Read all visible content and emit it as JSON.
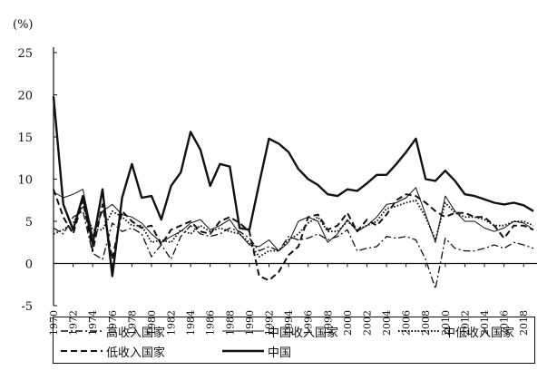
{
  "chart_data": {
    "type": "line",
    "ylabel": "(%)",
    "ylim": [
      -5,
      25
    ],
    "yticks": [
      "25",
      "20",
      "15",
      "10",
      "5",
      "0",
      "-5"
    ],
    "xlim": [
      1970,
      2019
    ],
    "xticks": [
      "1970",
      "1972",
      "1974",
      "1976",
      "1978",
      "1980",
      "1982",
      "1984",
      "1986",
      "1988",
      "1990",
      "1992",
      "1994",
      "1996",
      "1998",
      "2000",
      "2002",
      "2004",
      "2006",
      "2008",
      "2010",
      "2012",
      "2014",
      "2016",
      "2018"
    ],
    "x": [
      1970,
      1971,
      1972,
      1973,
      1974,
      1975,
      1976,
      1977,
      1978,
      1979,
      1980,
      1981,
      1982,
      1983,
      1984,
      1985,
      1986,
      1987,
      1988,
      1989,
      1990,
      1991,
      1992,
      1993,
      1994,
      1995,
      1996,
      1997,
      1998,
      1999,
      2000,
      2001,
      2002,
      2003,
      2004,
      2005,
      2006,
      2007,
      2008,
      2009,
      2010,
      2011,
      2012,
      2013,
      2014,
      2015,
      2016,
      2017,
      2018,
      2019
    ],
    "series": [
      {
        "name": "高收入国家",
        "style": "dashdot",
        "color": "#111111",
        "values": [
          4.2,
          3.5,
          5.5,
          6.2,
          1.2,
          0.5,
          4.8,
          3.8,
          4.2,
          3.5,
          0.8,
          2.2,
          0.5,
          3.2,
          4.5,
          3.5,
          3.2,
          3.5,
          4.2,
          3.8,
          3.0,
          1.5,
          2.0,
          1.5,
          3.2,
          2.8,
          3.0,
          3.5,
          2.8,
          3.2,
          4.0,
          1.5,
          1.8,
          2.0,
          3.2,
          3.0,
          3.2,
          2.8,
          0.5,
          -3.0,
          3.0,
          1.8,
          1.5,
          1.5,
          1.8,
          2.2,
          1.8,
          2.5,
          2.2,
          1.8
        ]
      },
      {
        "name": "中国收入国家",
        "style": "thin",
        "color": "#111111",
        "values": [
          8.5,
          7.8,
          8.2,
          8.8,
          3.2,
          6.2,
          7.0,
          5.8,
          5.5,
          4.8,
          3.5,
          2.5,
          3.2,
          3.8,
          4.8,
          5.2,
          4.0,
          4.5,
          5.2,
          3.5,
          2.2,
          2.0,
          2.8,
          1.5,
          2.5,
          5.0,
          5.5,
          5.0,
          2.5,
          3.5,
          5.2,
          3.8,
          4.5,
          5.5,
          7.0,
          7.2,
          7.8,
          9.0,
          5.8,
          2.5,
          8.0,
          6.2,
          5.0,
          5.0,
          4.2,
          3.8,
          4.2,
          5.0,
          4.8,
          4.0
        ]
      },
      {
        "name": "中低收入国家",
        "style": "dotted",
        "color": "#111111",
        "values": [
          3.5,
          4.0,
          4.8,
          6.8,
          4.0,
          4.0,
          6.2,
          5.5,
          4.5,
          4.5,
          2.5,
          2.8,
          2.5,
          4.0,
          3.5,
          4.5,
          3.8,
          4.2,
          3.8,
          3.5,
          2.5,
          0.8,
          1.5,
          1.5,
          2.8,
          3.5,
          4.8,
          5.5,
          3.8,
          3.8,
          5.0,
          4.0,
          4.5,
          5.0,
          6.5,
          6.8,
          7.2,
          7.5,
          5.5,
          2.8,
          7.2,
          6.0,
          5.5,
          5.5,
          5.2,
          4.5,
          4.5,
          5.0,
          5.0,
          4.5
        ]
      },
      {
        "name": "低收入国家",
        "style": "dashed",
        "color": "#111111",
        "values": [
          8.8,
          5.5,
          3.5,
          7.5,
          1.5,
          7.0,
          0.5,
          6.2,
          5.0,
          4.2,
          4.5,
          2.2,
          4.0,
          4.5,
          5.0,
          3.8,
          3.5,
          5.0,
          5.5,
          4.8,
          3.8,
          -1.5,
          -2.0,
          -1.0,
          1.0,
          2.0,
          5.5,
          5.8,
          4.0,
          4.5,
          6.0,
          3.8,
          5.2,
          4.5,
          5.8,
          7.5,
          8.2,
          8.0,
          7.2,
          6.2,
          5.5,
          6.0,
          6.0,
          5.5,
          5.5,
          4.5,
          3.0,
          4.5,
          4.5,
          4.0
        ]
      },
      {
        "name": "中国",
        "style": "thick",
        "color": "#111111",
        "values": [
          19.8,
          7.0,
          4.0,
          8.0,
          2.3,
          8.8,
          -1.5,
          7.8,
          11.8,
          7.8,
          8.0,
          5.2,
          9.2,
          10.8,
          15.6,
          13.5,
          9.2,
          11.8,
          11.5,
          4.2,
          4.0,
          9.5,
          14.8,
          14.2,
          13.2,
          11.2,
          10.0,
          9.3,
          8.2,
          8.0,
          8.8,
          8.6,
          9.5,
          10.5,
          10.5,
          11.8,
          13.2,
          14.8,
          10.0,
          9.8,
          11.0,
          9.8,
          8.2,
          8.0,
          7.6,
          7.2,
          7.0,
          7.2,
          6.9,
          6.2
        ]
      }
    ]
  },
  "legend": {
    "items": [
      {
        "name": "高收入国家"
      },
      {
        "name": "中国收入国家"
      },
      {
        "name": "中低收入国家"
      },
      {
        "name": "低收入国家"
      },
      {
        "name": "中国"
      }
    ]
  }
}
